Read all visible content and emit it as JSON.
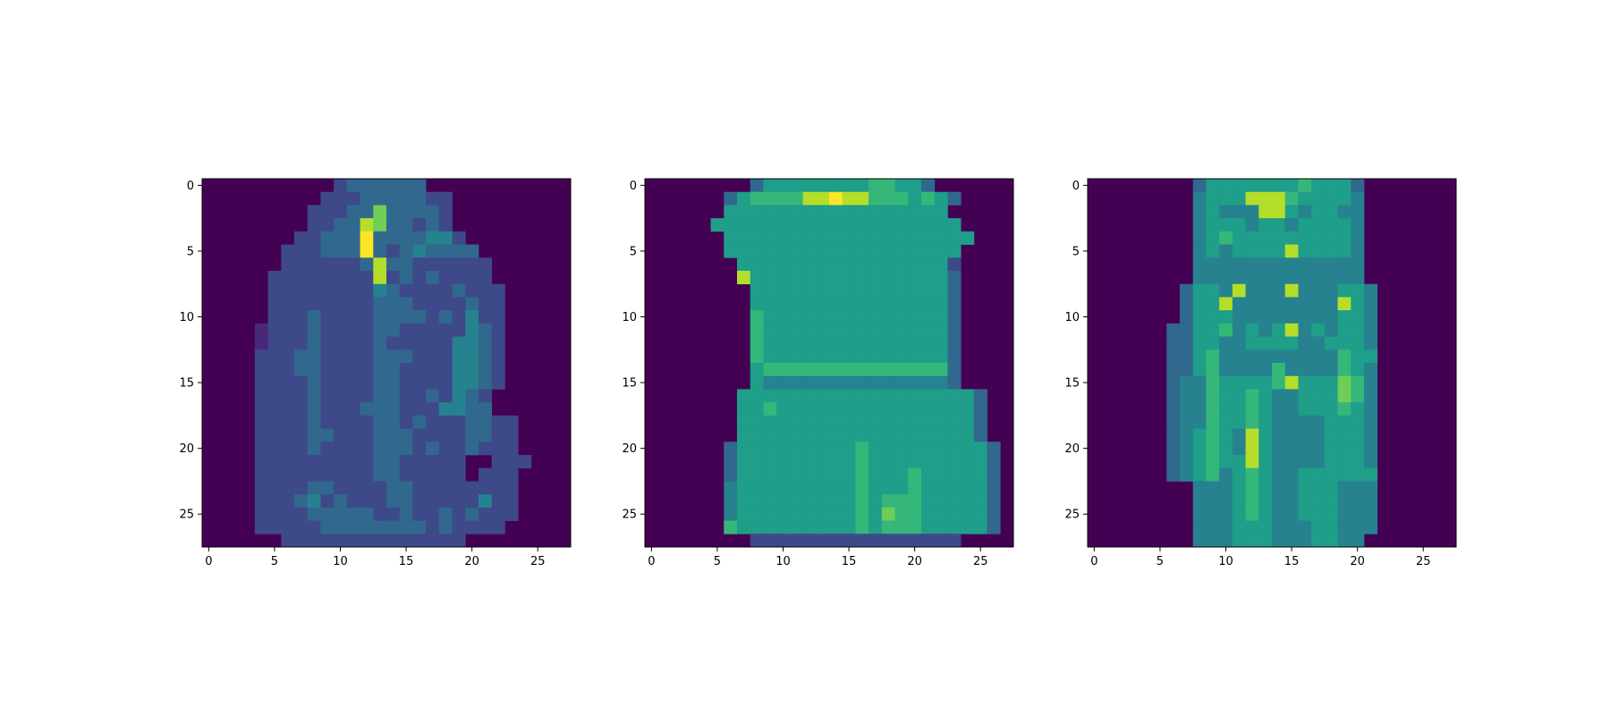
{
  "colors": {
    "background": "#ffffff",
    "axis": "#000000",
    "colormap": [
      "#440154",
      "#482878",
      "#3e4989",
      "#31688e",
      "#26828e",
      "#1f9e89",
      "#35b779",
      "#6ece58",
      "#b5de2b",
      "#fde725"
    ]
  },
  "chart_data": [
    {
      "type": "heatmap",
      "colormap": "viridis",
      "title": "",
      "xlabel": "",
      "ylabel": "",
      "xlim": [
        -0.5,
        27.5
      ],
      "ylim": [
        27.5,
        -0.5
      ],
      "y_axis_inverted": true,
      "grid": false,
      "xticks": [
        "0",
        "5",
        "10",
        "15",
        "20",
        "25"
      ],
      "yticks": [
        "0",
        "5",
        "10",
        "15",
        "20",
        "25"
      ],
      "values": [
        "..........2333333..........",
        ".........2223333322........",
        "........22233733332........",
        "........22338733232........",
        ".......2233393333442.......",
        "......222333932343333......",
        "......2222223833222222.....",
        ".....22222222823232222.....",
        ".....222222224322223222....",
        ".....222222223332222322....",
        ".....222322223333232422....",
        "....1222322223322222432....",
        "....1222322223222224432....",
        "....2223322223332224432....",
        "....2223322223322224432....",
        "....2222322223322224432....",
        "....222232222332232432.....",
        "....222232223332224433.....",
        "....22223222233232223322...",
        "....22223322233322223322...",
        "....22223222233323223222...",
        "....2222222223322222..222..",
        "....2222222223322222.222...",
        "....22223322223322222222...",
        "....22234232223322222422...",
        "....22223333322322323222...",
        "....2222233333333232222....",
        "......22222222222222......."
      ]
    },
    {
      "type": "heatmap",
      "colormap": "viridis",
      "title": "",
      "xlabel": "",
      "ylabel": "",
      "xlim": [
        -0.5,
        27.5
      ],
      "ylim": [
        27.5,
        -0.5
      ],
      "y_axis_inverted": true,
      "grid": false,
      "xticks": [
        "0",
        "5",
        "10",
        "15",
        "20",
        "25"
      ],
      "yticks": [
        "0",
        "5",
        "10",
        "15",
        "20",
        "25"
      ],
      "values": [
        "........35555555566553.....",
        "......356666889886665653...",
        "......55555555555555555....",
        ".....5555555555555555555...",
        "......5555555555555555555..",
        "......555555555555555555...",
        ".......55555555555555552...",
        ".......85555555555555553...",
        "........5555555555555553...",
        "........5555555555555553...",
        "........6555555555555553...",
        "........6555555555555553...",
        "........6555555555555553...",
        "........6555555555555553...",
        "........5666666666666663...",
        "........5444444444444443...",
        ".......5555555555555555553.",
        ".......5565555555555555553.",
        ".......5555555555555555553.",
        ".......5555555555555555553.",
        "......355555555565555555553",
        "......355555555565555555553",
        "......355555555565556555553",
        "......455555555565556555553",
        "......455555555565666555553",
        "......455555555565766555553",
        "......655555555565666555553",
        "........2222222222222222..."
      ]
    },
    {
      "type": "heatmap",
      "colormap": "viridis",
      "title": "",
      "xlabel": "",
      "ylabel": "",
      "xlim": [
        -0.5,
        27.5
      ],
      "ylim": [
        27.5,
        -0.5
      ],
      "y_axis_inverted": true,
      "grid": false,
      "xticks": [
        "0",
        "5",
        "10",
        "15",
        "20",
        "25"
      ],
      "yticks": [
        "0",
        "5",
        "10",
        "15",
        "20",
        "25"
      ],
      "values": [
        "........3555555565553.......",
        "........4555888655554.......",
        "........4544488545544.......",
        "........4555455455554.......",
        "........4565555555554.......",
        "........4545555855554.......",
        "........4444444444444.......",
        "........4444444444444.......",
        ".......355484448444554......",
        ".......355844444444854......",
        ".......355544444444554......",
        "......3355645458454554......",
        "......3355445555445554......",
        "......3356444444444655......",
        "......3356444464444654......",
        "......3446555568555764......",
        "......3446556544555764......",
        "......3446556544555654......",
        "......3446556544445554......",
        "......3456548544445554......",
        "......3456548544445554......",
        "......3456558544445554......",
        "......3456456544555555......",
        "........44456544555444......",
        "........44456544555444......",
        "........44456544555444......",
        "........44455544455444......",
        "........4445554445544......."
      ]
    }
  ]
}
